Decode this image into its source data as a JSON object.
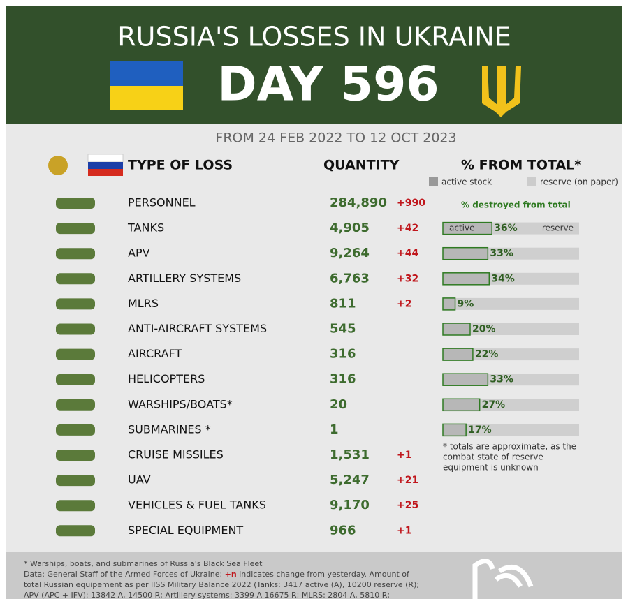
{
  "header": {
    "title": "RUSSIA'S LOSSES IN UKRAINE",
    "day": "DAY 596",
    "period": "FROM 24 FEB 2022 TO 12 OCT 2023"
  },
  "columns": {
    "type": "TYPE OF LOSS",
    "quantity": "QUANTITY",
    "percent": "% FROM TOTAL*"
  },
  "legend": {
    "active": "active stock",
    "reserve": "reserve (on paper)",
    "destroyed": "% destroyed from total",
    "bar_active": "active",
    "bar_reserve": "reserve"
  },
  "rows": [
    {
      "name": "PERSONNEL",
      "quantity": "284,890",
      "change": "+990"
    },
    {
      "name": "TANKS",
      "quantity": "4,905",
      "change": "+42",
      "percent": "36%"
    },
    {
      "name": "APV",
      "quantity": "9,264",
      "change": "+44",
      "percent": "33%"
    },
    {
      "name": "ARTILLERY SYSTEMS",
      "quantity": "6,763",
      "change": "+32",
      "percent": "34%"
    },
    {
      "name": "MLRS",
      "quantity": "811",
      "change": "+2",
      "percent": "9%"
    },
    {
      "name": "ANTI-AIRCRAFT SYSTEMS",
      "quantity": "545",
      "percent": "20%"
    },
    {
      "name": "AIRCRAFT",
      "quantity": "316",
      "percent": "22%"
    },
    {
      "name": "HELICOPTERS",
      "quantity": "316",
      "percent": "33%"
    },
    {
      "name": "WARSHIPS/BOATS*",
      "quantity": "20",
      "percent": "27%"
    },
    {
      "name": "SUBMARINES *",
      "quantity": "1",
      "percent": "17%"
    },
    {
      "name": "CRUISE MISSILES",
      "quantity": "1,531",
      "change": "+1"
    },
    {
      "name": "UAV",
      "quantity": "5,247",
      "change": "+21"
    },
    {
      "name": "VEHICLES & FUEL TANKS",
      "quantity": "9,170",
      "change": "+25"
    },
    {
      "name": "SPECIAL EQUIPMENT",
      "quantity": "966",
      "change": "+1"
    }
  ],
  "note": [
    "* totals are approximate, as the",
    "combat state of reserve",
    "equipment is unknown"
  ],
  "footer": {
    "line1": "* Warships, boats, and submarines of Russia's Black Sea Fleet",
    "line2a": "Data: General Staff of the Armed Forces of Ukraine; ",
    "line2b": "+n",
    "line2c": " indicates change from yesterday. Amount of",
    "line3": "total Russian equipement as per IISS Military Balance 2022 (Tanks: 3417 active (A), 10200 reserve (R);",
    "line4": "APV (APC + IFV): 13842 A, 14500 R; Artillery systems: 3399 A 16675 R; MLRS: 2804 A, 5810 R;"
  }
}
